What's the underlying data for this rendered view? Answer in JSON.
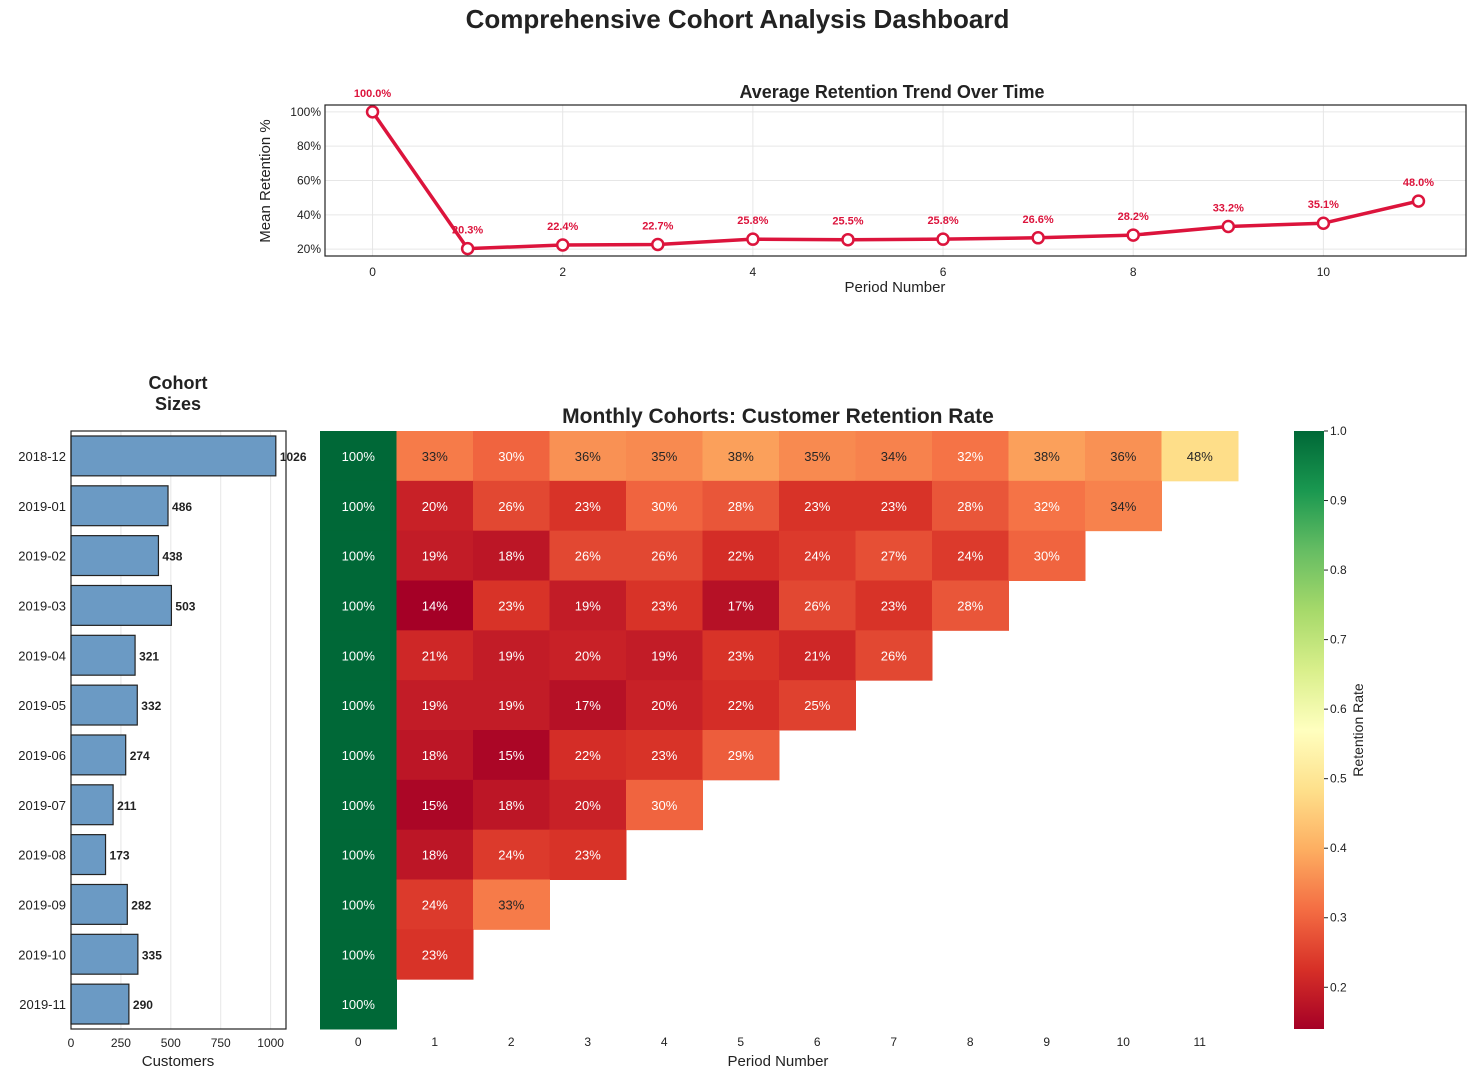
{
  "page": {
    "title": "Comprehensive Cohort Analysis Dashboard"
  },
  "chart_data": [
    {
      "type": "line",
      "title": "Average Retention Trend Over Time",
      "xlabel": "Period Number",
      "ylabel": "Mean Retention %",
      "x": [
        0,
        1,
        2,
        3,
        4,
        5,
        6,
        7,
        8,
        9,
        10,
        11
      ],
      "y": [
        100.0,
        20.3,
        22.4,
        22.7,
        25.8,
        25.5,
        25.8,
        26.6,
        28.2,
        33.2,
        35.1,
        48.0
      ],
      "point_labels": [
        "100.0%",
        "20.3%",
        "22.4%",
        "22.7%",
        "25.8%",
        "25.5%",
        "25.8%",
        "26.6%",
        "28.2%",
        "33.2%",
        "35.1%",
        "48.0%"
      ],
      "xticks": [
        "0",
        "2",
        "4",
        "6",
        "8",
        "10"
      ],
      "yticks": [
        "20%",
        "40%",
        "60%",
        "80%",
        "100%"
      ],
      "xlim": [
        -0.5,
        11.5
      ],
      "ylim": [
        16,
        104
      ],
      "grid": true,
      "color": "#dc143c"
    },
    {
      "type": "bar",
      "orientation": "horizontal",
      "title": "Cohort\nSizes",
      "xlabel": "Customers",
      "categories": [
        "2018-12",
        "2019-01",
        "2019-02",
        "2019-03",
        "2019-04",
        "2019-05",
        "2019-06",
        "2019-07",
        "2019-08",
        "2019-09",
        "2019-10",
        "2019-11"
      ],
      "values": [
        1026,
        486,
        438,
        503,
        321,
        332,
        274,
        211,
        173,
        282,
        335,
        290
      ],
      "xticks": [
        "0",
        "250",
        "500",
        "750",
        "1000"
      ],
      "xlim": [
        0,
        1077
      ],
      "grid": true,
      "color": "#6b9ac4"
    },
    {
      "type": "heatmap",
      "title": "Monthly Cohorts: Customer Retention Rate",
      "xlabel": "Period Number",
      "ylabel": "",
      "columns": [
        "0",
        "1",
        "2",
        "3",
        "4",
        "5",
        "6",
        "7",
        "8",
        "9",
        "10",
        "11"
      ],
      "rows": [
        "2018-12",
        "2019-01",
        "2019-02",
        "2019-03",
        "2019-04",
        "2019-05",
        "2019-06",
        "2019-07",
        "2019-08",
        "2019-09",
        "2019-10",
        "2019-11"
      ],
      "values": [
        [
          1.0,
          0.33,
          0.3,
          0.36,
          0.35,
          0.38,
          0.35,
          0.34,
          0.32,
          0.38,
          0.36,
          0.48
        ],
        [
          1.0,
          0.2,
          0.26,
          0.23,
          0.3,
          0.28,
          0.23,
          0.23,
          0.28,
          0.32,
          0.34
        ],
        [
          1.0,
          0.19,
          0.18,
          0.26,
          0.26,
          0.22,
          0.24,
          0.27,
          0.24,
          0.3
        ],
        [
          1.0,
          0.14,
          0.23,
          0.19,
          0.23,
          0.17,
          0.26,
          0.23,
          0.28
        ],
        [
          1.0,
          0.21,
          0.19,
          0.2,
          0.19,
          0.23,
          0.21,
          0.26
        ],
        [
          1.0,
          0.19,
          0.19,
          0.17,
          0.2,
          0.22,
          0.25
        ],
        [
          1.0,
          0.18,
          0.15,
          0.22,
          0.23,
          0.29
        ],
        [
          1.0,
          0.15,
          0.18,
          0.2,
          0.3
        ],
        [
          1.0,
          0.18,
          0.24,
          0.23
        ],
        [
          1.0,
          0.24,
          0.33
        ],
        [
          1.0,
          0.23
        ],
        [
          1.0
        ]
      ],
      "colormap": "RdYlGn",
      "colorbar": {
        "label": "Retention Rate",
        "range": [
          0.14,
          1.0
        ],
        "ticks": [
          "0.2",
          "0.3",
          "0.4",
          "0.5",
          "0.6",
          "0.7",
          "0.8",
          "0.9",
          "1.0"
        ]
      }
    }
  ]
}
